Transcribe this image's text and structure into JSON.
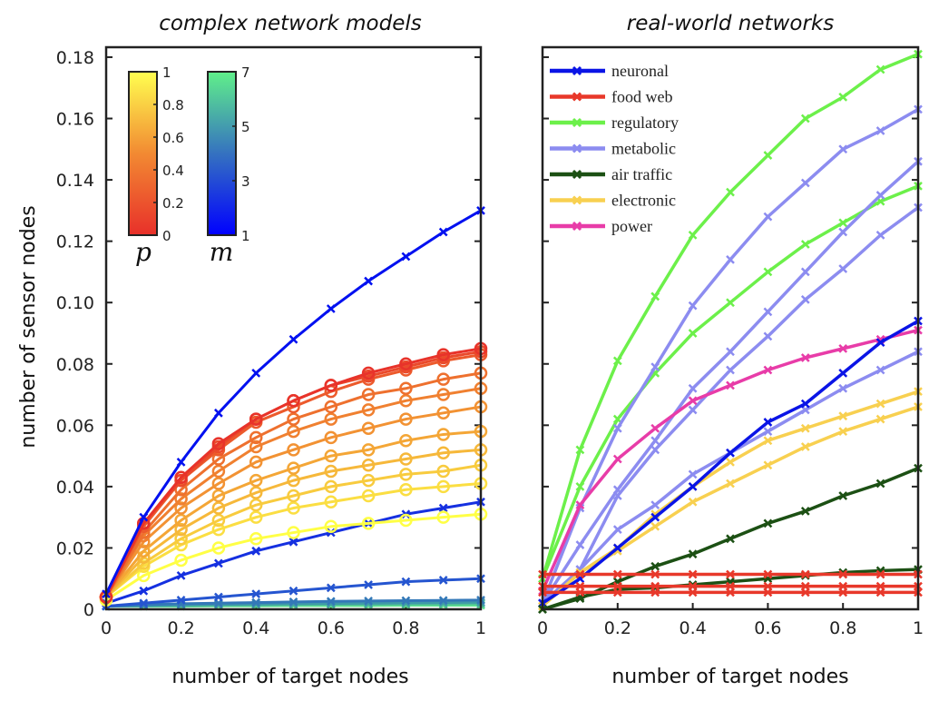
{
  "chart_data": [
    {
      "type": "line",
      "title": "complex network models",
      "xlabel": "number of target nodes",
      "ylabel": "number of sensor nodes",
      "xlim": [
        0,
        1
      ],
      "ylim": [
        0,
        0.18
      ],
      "xticks": [
        "0",
        "0.2",
        "0.4",
        "0.6",
        "0.8",
        "1"
      ],
      "yticks": [
        "0",
        "0.02",
        "0.04",
        "0.06",
        "0.08",
        "0.10",
        "0.12",
        "0.14",
        "0.16",
        "0.18"
      ],
      "x": [
        0,
        0.1,
        0.2,
        0.3,
        0.4,
        0.5,
        0.6,
        0.7,
        0.8,
        0.9,
        1
      ],
      "colorbars": [
        {
          "symbol": "p",
          "ticks": [
            "0",
            "0.2",
            "0.4",
            "0.6",
            "0.8",
            "1"
          ],
          "colors": [
            "#e8302a",
            "#ffff50"
          ]
        },
        {
          "symbol": "m",
          "ticks": [
            "1",
            "3",
            "5",
            "7"
          ],
          "colors": [
            "#0000ff",
            "#60f08a"
          ]
        }
      ],
      "series_p": [
        {
          "p": 0,
          "color": "#e8332a",
          "values": [
            0.004,
            0.028,
            0.043,
            0.054,
            0.062,
            0.068,
            0.073,
            0.077,
            0.08,
            0.083,
            0.085
          ]
        },
        {
          "p": 0.1,
          "color": "#ea4a2b",
          "values": [
            0.004,
            0.028,
            0.042,
            0.053,
            0.062,
            0.068,
            0.073,
            0.076,
            0.079,
            0.082,
            0.084
          ]
        },
        {
          "p": 0.2,
          "color": "#ec5a2c",
          "values": [
            0.004,
            0.027,
            0.042,
            0.052,
            0.061,
            0.066,
            0.071,
            0.075,
            0.078,
            0.081,
            0.083
          ]
        },
        {
          "p": 0.3,
          "color": "#ee702e",
          "values": [
            0.004,
            0.025,
            0.039,
            0.049,
            0.056,
            0.062,
            0.066,
            0.07,
            0.072,
            0.075,
            0.077
          ]
        },
        {
          "p": 0.4,
          "color": "#f08030",
          "values": [
            0.004,
            0.024,
            0.036,
            0.045,
            0.053,
            0.058,
            0.062,
            0.065,
            0.068,
            0.07,
            0.072
          ]
        },
        {
          "p": 0.5,
          "color": "#f29233",
          "values": [
            0.004,
            0.022,
            0.033,
            0.041,
            0.048,
            0.052,
            0.056,
            0.059,
            0.062,
            0.064,
            0.066
          ]
        },
        {
          "p": 0.6,
          "color": "#f4a636",
          "values": [
            0.004,
            0.019,
            0.029,
            0.037,
            0.042,
            0.046,
            0.05,
            0.052,
            0.055,
            0.057,
            0.058
          ]
        },
        {
          "p": 0.7,
          "color": "#f6b83a",
          "values": [
            0.004,
            0.017,
            0.026,
            0.033,
            0.038,
            0.042,
            0.045,
            0.047,
            0.049,
            0.051,
            0.052
          ]
        },
        {
          "p": 0.8,
          "color": "#f8cb3e",
          "values": [
            0.004,
            0.015,
            0.023,
            0.029,
            0.034,
            0.037,
            0.04,
            0.042,
            0.044,
            0.045,
            0.047
          ]
        },
        {
          "p": 0.9,
          "color": "#fbde42",
          "values": [
            0.004,
            0.014,
            0.021,
            0.026,
            0.03,
            0.033,
            0.035,
            0.037,
            0.039,
            0.04,
            0.041
          ]
        },
        {
          "p": 1,
          "color": "#ffff45",
          "values": [
            0.003,
            0.011,
            0.016,
            0.02,
            0.023,
            0.025,
            0.027,
            0.028,
            0.029,
            0.03,
            0.031
          ]
        }
      ],
      "series_m": [
        {
          "m": 1,
          "color": "#0010f0",
          "values": [
            0.005,
            0.03,
            0.048,
            0.064,
            0.077,
            0.088,
            0.098,
            0.107,
            0.115,
            0.123,
            0.13
          ]
        },
        {
          "m": 2,
          "color": "#1530e0",
          "values": [
            0.002,
            0.006,
            0.011,
            0.015,
            0.019,
            0.022,
            0.025,
            0.028,
            0.031,
            0.033,
            0.035
          ]
        },
        {
          "m": 3,
          "color": "#2555d0",
          "values": [
            0.001,
            0.002,
            0.003,
            0.004,
            0.005,
            0.006,
            0.007,
            0.008,
            0.009,
            0.0095,
            0.01
          ]
        },
        {
          "m": 4,
          "color": "#3378b8",
          "values": [
            0.001,
            0.0015,
            0.0018,
            0.002,
            0.0022,
            0.0024,
            0.0026,
            0.0027,
            0.0028,
            0.0029,
            0.003
          ]
        },
        {
          "m": 5,
          "color": "#3f9aa8",
          "values": [
            0.001,
            0.0012,
            0.0014,
            0.0016,
            0.0017,
            0.0018,
            0.0019,
            0.002,
            0.0021,
            0.0022,
            0.0023
          ]
        },
        {
          "m": 6,
          "color": "#4fc096",
          "values": [
            0.001,
            0.0011,
            0.0012,
            0.0013,
            0.0014,
            0.0015,
            0.0016,
            0.0016,
            0.0017,
            0.0017,
            0.0018
          ]
        },
        {
          "m": 7,
          "color": "#60e890",
          "values": [
            0.001,
            0.001,
            0.001,
            0.0011,
            0.0011,
            0.0012,
            0.0012,
            0.0012,
            0.0013,
            0.0013,
            0.0013
          ]
        }
      ]
    },
    {
      "type": "line",
      "title": "real-world networks",
      "xlabel": "number of target nodes",
      "xlim": [
        0,
        1
      ],
      "ylim": [
        0,
        0.18
      ],
      "xticks": [
        "0",
        "0.2",
        "0.4",
        "0.6",
        "0.8",
        "1"
      ],
      "x": [
        0,
        0.1,
        0.2,
        0.3,
        0.4,
        0.5,
        0.6,
        0.7,
        0.8,
        0.9,
        1
      ],
      "legend": [
        {
          "label": "neuronal",
          "color": "#0a14e6"
        },
        {
          "label": "food web",
          "color": "#e8382a"
        },
        {
          "label": "regulatory",
          "color": "#6cf04a"
        },
        {
          "label": "metabolic",
          "color": "#8c8cf0"
        },
        {
          "label": "air traffic",
          "color": "#1c5014"
        },
        {
          "label": "electronic",
          "color": "#f8d050"
        },
        {
          "label": "power",
          "color": "#e83ca8"
        }
      ],
      "legend_position": "top-left",
      "series": [
        {
          "name": "regulatory",
          "color": "#6cf04a",
          "values": [
            0.01,
            0.052,
            0.081,
            0.102,
            0.122,
            0.136,
            0.148,
            0.16,
            0.167,
            0.176,
            0.181
          ]
        },
        {
          "name": "regulatory",
          "color": "#6cf04a",
          "values": [
            0.01,
            0.04,
            0.062,
            0.077,
            0.09,
            0.1,
            0.11,
            0.119,
            0.126,
            0.133,
            0.138
          ]
        },
        {
          "name": "metabolic",
          "color": "#8c8cf0",
          "values": [
            0.002,
            0.033,
            0.059,
            0.079,
            0.099,
            0.114,
            0.128,
            0.139,
            0.15,
            0.156,
            0.163
          ]
        },
        {
          "name": "metabolic",
          "color": "#8c8cf0",
          "values": [
            0.002,
            0.021,
            0.039,
            0.055,
            0.072,
            0.084,
            0.097,
            0.11,
            0.123,
            0.135,
            0.146
          ]
        },
        {
          "name": "metabolic",
          "color": "#8c8cf0",
          "values": [
            0.002,
            0.013,
            0.037,
            0.052,
            0.065,
            0.078,
            0.089,
            0.101,
            0.111,
            0.122,
            0.131
          ]
        },
        {
          "name": "metabolic",
          "color": "#8c8cf0",
          "values": [
            0.002,
            0.013,
            0.026,
            0.034,
            0.044,
            0.051,
            0.058,
            0.065,
            0.072,
            0.078,
            0.084
          ]
        },
        {
          "name": "power",
          "color": "#e83ca8",
          "values": [
            0.006,
            0.034,
            0.049,
            0.059,
            0.068,
            0.073,
            0.078,
            0.082,
            0.085,
            0.088,
            0.091
          ]
        },
        {
          "name": "electronic",
          "color": "#f8d050",
          "values": [
            0.001,
            0.012,
            0.02,
            0.031,
            0.04,
            0.048,
            0.055,
            0.059,
            0.063,
            0.067,
            0.071
          ]
        },
        {
          "name": "electronic",
          "color": "#f8d050",
          "values": [
            0.001,
            0.012,
            0.019,
            0.027,
            0.035,
            0.041,
            0.047,
            0.053,
            0.058,
            0.062,
            0.066
          ]
        },
        {
          "name": "neuronal",
          "color": "#0a14e6",
          "values": [
            0.002,
            0.01,
            0.02,
            0.03,
            0.04,
            0.051,
            0.061,
            0.067,
            0.077,
            0.087,
            0.094
          ]
        },
        {
          "name": "air traffic",
          "color": "#1c5014",
          "values": [
            0,
            0.0035,
            0.009,
            0.014,
            0.018,
            0.023,
            0.028,
            0.032,
            0.037,
            0.041,
            0.046
          ]
        },
        {
          "name": "air traffic",
          "color": "#1c5014",
          "values": [
            0,
            0.004,
            0.0065,
            0.007,
            0.008,
            0.009,
            0.01,
            0.011,
            0.012,
            0.0126,
            0.013
          ]
        },
        {
          "name": "food web",
          "color": "#e8382a",
          "values": [
            0.0114,
            0.0114,
            0.0114,
            0.0114,
            0.0114,
            0.0114,
            0.0114,
            0.0114,
            0.0114,
            0.0114,
            0.0114
          ]
        },
        {
          "name": "food web",
          "color": "#e8382a",
          "values": [
            0.0075,
            0.0075,
            0.0075,
            0.0075,
            0.0075,
            0.0075,
            0.0075,
            0.0075,
            0.0075,
            0.0075,
            0.0075
          ]
        },
        {
          "name": "food web",
          "color": "#e8382a",
          "values": [
            0.0055,
            0.0055,
            0.0055,
            0.0055,
            0.0055,
            0.0055,
            0.0055,
            0.0055,
            0.0055,
            0.0055,
            0.0055
          ]
        }
      ]
    }
  ]
}
